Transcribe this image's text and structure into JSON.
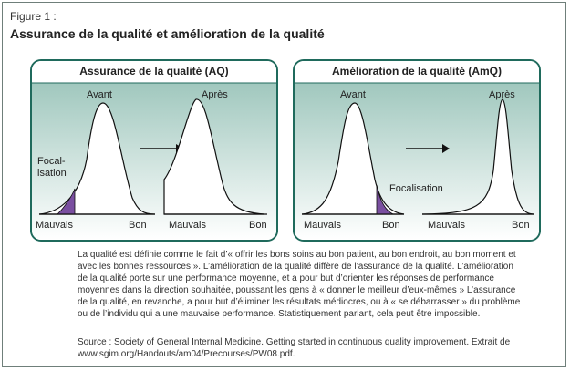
{
  "figure": {
    "number": "Figure 1 :",
    "title": "Assurance de la qualité et amélioration de la qualité"
  },
  "panels": {
    "left": {
      "title": "Assurance de la qualité (AQ)",
      "before_label": "Avant",
      "after_label": "Après",
      "focus_label_line1": "Focal-",
      "focus_label_line2": "isation",
      "bad_label_1": "Mauvais",
      "good_label_1": "Bon",
      "bad_label_2": "Mauvais",
      "good_label_2": "Bon"
    },
    "right": {
      "title": "Amélioration de la qualité (AmQ)",
      "before_label": "Avant",
      "after_label": "Après",
      "focus_label": "Focalisation",
      "bad_label_1": "Mauvais",
      "good_label_1": "Bon",
      "bad_label_2": "Mauvais",
      "good_label_2": "Bon"
    }
  },
  "colors": {
    "panel_border": "#1f6a5c",
    "panel_gradient_top": "#9fc7bd",
    "focus_fill": "#7a4fa0"
  },
  "description": "La qualité est définie comme le fait d’« offrir les bons soins au bon patient, au bon endroit, au bon moment et avec les bonnes ressources ». L’amélioration de la qualité diffère de l’assurance de la qualité. L’amélioration de la qualité porte sur une performance moyenne, et a pour but d’orienter les réponses de performance moyennes dans la direction souhaitée, poussant les gens à « donner le meilleur d’eux-mêmes » L’assurance de la qualité, en revanche, a pour but d’éliminer les résultats médiocres, ou à « se débarrasser » du problème ou de l’individu qui a une mauvaise performance. Statistiquement parlant, cela peut être impossible.",
  "source": "Source : Society of General Internal Medicine. Getting started in continuous quality improvement. Extrait de www.sgim.org/Handouts/am04/Precourses/PW08.pdf."
}
